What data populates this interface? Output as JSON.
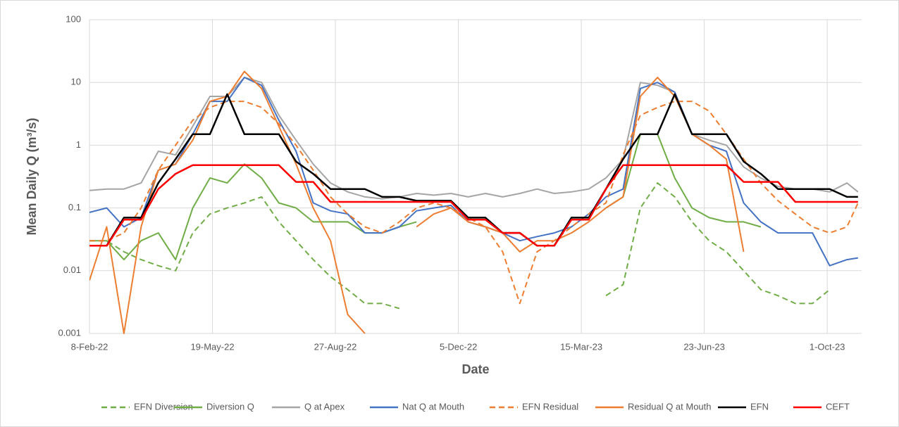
{
  "chart_data": {
    "type": "line",
    "xlabel": "Date",
    "ylabel": "Mean Daily Q (m³/s)",
    "log_y": true,
    "grid": true,
    "legend": "bottom",
    "xlim": [
      "2022-02-08",
      "2023-10-29"
    ],
    "xticks": [
      {
        "value": "2022-02-08",
        "label": "8-Feb-22"
      },
      {
        "value": "2022-05-19",
        "label": "19-May-22"
      },
      {
        "value": "2022-08-27",
        "label": "27-Aug-22"
      },
      {
        "value": "2022-12-05",
        "label": "5-Dec-22"
      },
      {
        "value": "2023-03-15",
        "label": "15-Mar-23"
      },
      {
        "value": "2023-06-23",
        "label": "23-Jun-23"
      },
      {
        "value": "2023-10-01",
        "label": "1-Oct-23"
      }
    ],
    "ylim": [
      0.001,
      100
    ],
    "yticks": [
      0.001,
      0.01,
      0.1,
      1,
      10,
      100
    ],
    "x": [
      "2022-02-08",
      "2022-02-22",
      "2022-03-08",
      "2022-03-22",
      "2022-04-05",
      "2022-04-19",
      "2022-05-03",
      "2022-05-17",
      "2022-05-31",
      "2022-06-14",
      "2022-06-28",
      "2022-07-12",
      "2022-07-26",
      "2022-08-09",
      "2022-08-23",
      "2022-09-06",
      "2022-09-20",
      "2022-10-04",
      "2022-10-18",
      "2022-11-01",
      "2022-11-15",
      "2022-11-29",
      "2022-12-13",
      "2022-12-27",
      "2023-01-10",
      "2023-01-24",
      "2023-02-07",
      "2023-02-21",
      "2023-03-07",
      "2023-03-21",
      "2023-04-04",
      "2023-04-18",
      "2023-05-02",
      "2023-05-16",
      "2023-05-30",
      "2023-06-13",
      "2023-06-27",
      "2023-07-11",
      "2023-07-25",
      "2023-08-08",
      "2023-08-22",
      "2023-09-05",
      "2023-09-19",
      "2023-10-03",
      "2023-10-17",
      "2023-10-26"
    ],
    "series": [
      {
        "name": "EFN Diversion",
        "color": "#70ad47",
        "linestyle": "dashed",
        "values": [
          0.03,
          0.03,
          0.02,
          0.015,
          0.012,
          0.01,
          0.04,
          0.08,
          0.1,
          0.12,
          0.15,
          0.06,
          0.03,
          0.015,
          0.008,
          0.005,
          0.003,
          0.003,
          0.0025,
          null,
          null,
          null,
          null,
          null,
          null,
          null,
          null,
          null,
          null,
          null,
          0.004,
          0.006,
          0.1,
          0.25,
          0.15,
          0.06,
          0.03,
          0.02,
          0.01,
          0.005,
          0.004,
          0.003,
          0.003,
          0.005,
          null,
          null
        ]
      },
      {
        "name": "Diversion Q",
        "color": "#70ad47",
        "linestyle": "solid",
        "values": [
          0.03,
          0.03,
          0.015,
          0.03,
          0.04,
          0.015,
          0.1,
          0.3,
          0.25,
          0.5,
          0.3,
          0.12,
          0.1,
          0.06,
          0.06,
          0.06,
          0.04,
          0.04,
          0.05,
          0.06,
          null,
          null,
          null,
          null,
          null,
          null,
          null,
          null,
          null,
          null,
          0.1,
          0.15,
          1.5,
          1.5,
          0.3,
          0.1,
          0.07,
          0.06,
          0.06,
          0.05,
          null,
          null,
          null,
          null,
          null,
          null
        ]
      },
      {
        "name": "Q at Apex",
        "color": "#a5a5a5",
        "linestyle": "solid",
        "values": [
          0.19,
          0.2,
          0.2,
          0.25,
          0.8,
          0.7,
          2,
          6,
          6,
          12,
          10,
          3,
          1.2,
          0.5,
          0.25,
          0.18,
          0.15,
          0.14,
          0.15,
          0.17,
          0.16,
          0.17,
          0.15,
          0.17,
          0.15,
          0.17,
          0.2,
          0.17,
          0.18,
          0.2,
          0.3,
          0.6,
          10,
          9,
          7,
          1.5,
          1.2,
          1,
          0.45,
          0.3,
          0.22,
          0.2,
          0.2,
          0.18,
          0.25,
          0.18
        ]
      },
      {
        "name": "Nat Q at Mouth",
        "color": "#4472c4",
        "linestyle": "solid",
        "values": [
          0.085,
          0.1,
          0.05,
          0.07,
          0.4,
          0.5,
          1.5,
          5,
          5,
          12,
          9,
          2.5,
          0.8,
          0.12,
          0.09,
          0.08,
          0.04,
          0.04,
          0.05,
          0.09,
          0.1,
          0.11,
          0.06,
          0.05,
          0.04,
          0.03,
          0.035,
          0.04,
          0.05,
          0.08,
          0.15,
          0.2,
          8,
          10,
          7,
          1.5,
          1,
          0.8,
          0.12,
          0.06,
          0.04,
          0.04,
          0.04,
          0.012,
          0.015,
          0.016
        ]
      },
      {
        "name": "EFN Residual",
        "color": "#ed7d31",
        "linestyle": "dashed",
        "values": [
          0.03,
          0.03,
          0.04,
          0.1,
          0.4,
          1,
          2.5,
          4,
          5,
          5,
          4,
          2.2,
          1,
          0.4,
          0.15,
          0.08,
          0.05,
          0.04,
          0.06,
          0.1,
          0.12,
          0.1,
          0.07,
          0.05,
          0.02,
          0.003,
          0.02,
          0.03,
          0.05,
          0.08,
          0.12,
          0.7,
          3,
          4,
          5,
          5,
          3.5,
          1.5,
          0.6,
          0.25,
          0.13,
          0.08,
          0.05,
          0.04,
          0.05,
          0.12
        ]
      },
      {
        "name": "Residual Q at Mouth",
        "color": "#ed7d31",
        "linestyle": "solid",
        "values": [
          0.007,
          0.05,
          0.001,
          0.05,
          0.4,
          0.5,
          1.2,
          5,
          6,
          15,
          8,
          2,
          0.5,
          0.1,
          0.03,
          0.002,
          0.001,
          null,
          null,
          0.05,
          0.08,
          0.1,
          0.06,
          0.05,
          0.04,
          0.02,
          0.03,
          0.03,
          0.04,
          0.06,
          0.1,
          0.15,
          6,
          12,
          6,
          1.5,
          1,
          0.6,
          0.02,
          null,
          null,
          null,
          null,
          null,
          null,
          null
        ]
      },
      {
        "name": "EFN",
        "color": "#000000",
        "linestyle": "solid",
        "values": [
          0.025,
          0.025,
          0.07,
          0.07,
          0.25,
          0.6,
          1.5,
          1.5,
          6.5,
          1.5,
          1.5,
          1.5,
          0.55,
          0.35,
          0.2,
          0.2,
          0.2,
          0.15,
          0.15,
          0.13,
          0.13,
          0.13,
          0.07,
          0.07,
          0.04,
          0.04,
          0.025,
          0.025,
          0.07,
          0.07,
          0.2,
          0.6,
          1.5,
          1.5,
          6.5,
          1.5,
          1.5,
          1.5,
          0.55,
          0.35,
          0.2,
          0.2,
          0.2,
          0.2,
          0.15,
          0.15
        ]
      },
      {
        "name": "CEFT",
        "color": "#ff0000",
        "linestyle": "solid",
        "values": [
          0.025,
          0.025,
          0.065,
          0.065,
          0.2,
          0.35,
          0.48,
          0.48,
          0.48,
          0.48,
          0.48,
          0.48,
          0.26,
          0.26,
          0.125,
          0.125,
          0.125,
          0.125,
          0.125,
          0.125,
          0.125,
          0.125,
          0.065,
          0.065,
          0.04,
          0.04,
          0.025,
          0.025,
          0.065,
          0.065,
          0.2,
          0.48,
          0.48,
          0.48,
          0.48,
          0.48,
          0.48,
          0.48,
          0.26,
          0.26,
          0.26,
          0.125,
          0.125,
          0.125,
          0.125,
          0.125
        ]
      }
    ]
  }
}
